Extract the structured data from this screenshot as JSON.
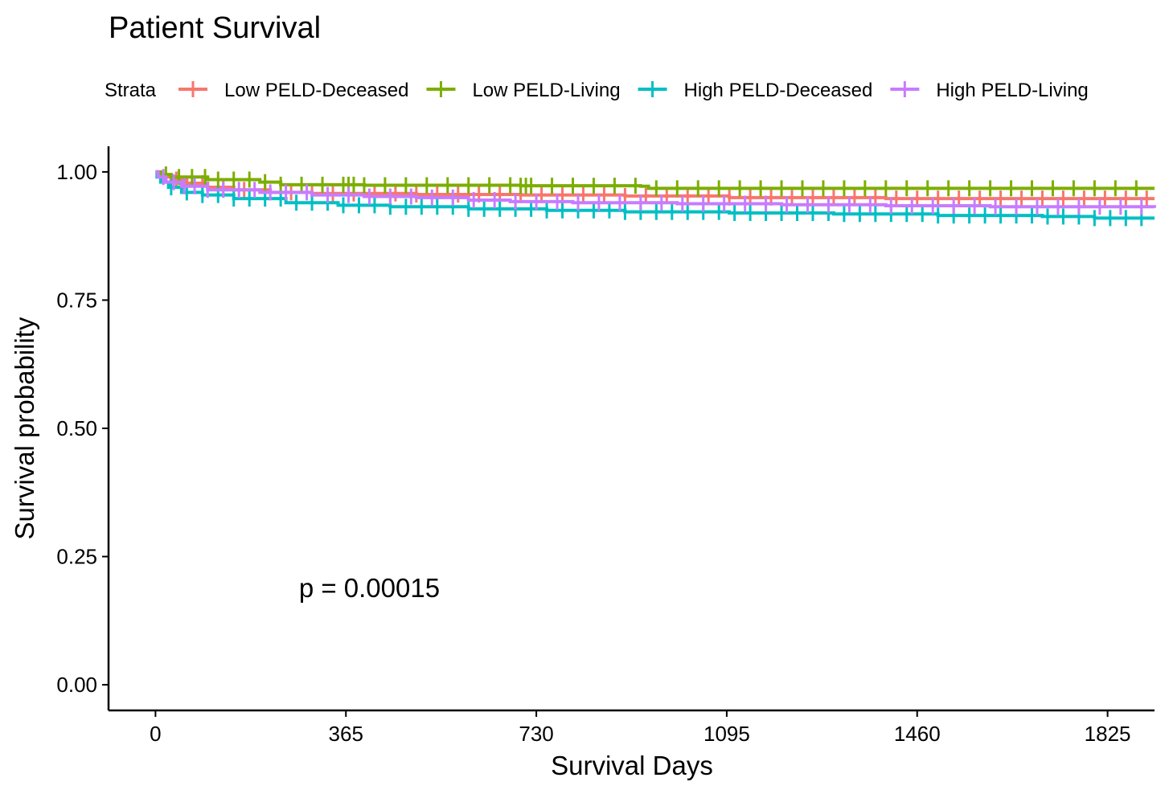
{
  "chart_data": {
    "type": "line",
    "subtype": "kaplan-meier",
    "title": "Patient Survival",
    "xlabel": "Survival Days",
    "ylabel": "Survival probability",
    "xlim": [
      -90,
      1915
    ],
    "ylim": [
      -0.05,
      1.05
    ],
    "xticks": [
      0,
      365,
      730,
      1095,
      1460,
      1825
    ],
    "yticks": [
      "0.00",
      "0.25",
      "0.50",
      "0.75",
      "1.00"
    ],
    "legend_title": "Strata",
    "legend_position": "top",
    "grid": false,
    "annotation": {
      "text": "p = 0.00015",
      "x": 410,
      "y": 0.19
    },
    "series": [
      {
        "name": "Low PELD-Deceased",
        "color": "#F8766D",
        "steps": [
          [
            0,
            1.0
          ],
          [
            5,
            0.995
          ],
          [
            15,
            0.99
          ],
          [
            30,
            0.985
          ],
          [
            60,
            0.978
          ],
          [
            100,
            0.97
          ],
          [
            150,
            0.965
          ],
          [
            220,
            0.96
          ],
          [
            300,
            0.958
          ],
          [
            500,
            0.956
          ],
          [
            700,
            0.955
          ],
          [
            900,
            0.953
          ],
          [
            1100,
            0.95
          ],
          [
            1400,
            0.948
          ],
          [
            1915,
            0.948
          ]
        ],
        "censor": [
          40,
          90,
          130,
          170,
          210,
          260,
          300,
          340,
          380,
          420,
          460,
          500,
          540,
          580,
          620,
          660,
          700,
          740,
          780,
          820,
          860,
          900,
          940,
          980,
          1020,
          1060,
          1100,
          1140,
          1180,
          1220,
          1260,
          1300,
          1340,
          1380,
          1420,
          1460,
          1500,
          1540,
          1580,
          1620,
          1660,
          1700,
          1740,
          1780,
          1820,
          1860,
          1900
        ]
      },
      {
        "name": "Low PELD-Living",
        "color": "#7CAE00",
        "steps": [
          [
            0,
            1.0
          ],
          [
            10,
            0.995
          ],
          [
            30,
            0.99
          ],
          [
            100,
            0.985
          ],
          [
            200,
            0.98
          ],
          [
            240,
            0.975
          ],
          [
            400,
            0.974
          ],
          [
            700,
            0.973
          ],
          [
            930,
            0.972
          ],
          [
            945,
            0.968
          ],
          [
            1200,
            0.968
          ],
          [
            1915,
            0.968
          ]
        ],
        "censor": [
          20,
          45,
          70,
          95,
          120,
          150,
          180,
          210,
          240,
          280,
          320,
          360,
          370,
          380,
          400,
          440,
          480,
          520,
          560,
          600,
          640,
          680,
          700,
          710,
          720,
          760,
          800,
          840,
          880,
          920,
          960,
          1000,
          1040,
          1080,
          1120,
          1160,
          1200,
          1240,
          1280,
          1320,
          1360,
          1400,
          1440,
          1480,
          1520,
          1560,
          1600,
          1640,
          1680,
          1720,
          1760,
          1800,
          1840,
          1880
        ]
      },
      {
        "name": "High PELD-Deceased",
        "color": "#00BFC4",
        "steps": [
          [
            0,
            1.0
          ],
          [
            3,
            0.99
          ],
          [
            10,
            0.98
          ],
          [
            25,
            0.97
          ],
          [
            50,
            0.96
          ],
          [
            90,
            0.955
          ],
          [
            150,
            0.948
          ],
          [
            250,
            0.94
          ],
          [
            350,
            0.935
          ],
          [
            450,
            0.932
          ],
          [
            600,
            0.928
          ],
          [
            750,
            0.925
          ],
          [
            900,
            0.922
          ],
          [
            1100,
            0.92
          ],
          [
            1300,
            0.918
          ],
          [
            1500,
            0.915
          ],
          [
            1700,
            0.913
          ],
          [
            1800,
            0.91
          ],
          [
            1915,
            0.91
          ]
        ],
        "censor": [
          30,
          60,
          90,
          120,
          150,
          180,
          210,
          240,
          270,
          300,
          330,
          360,
          390,
          420,
          450,
          480,
          510,
          540,
          570,
          600,
          630,
          660,
          690,
          720,
          750,
          780,
          810,
          840,
          870,
          900,
          930,
          960,
          990,
          1020,
          1050,
          1080,
          1110,
          1140,
          1170,
          1200,
          1230,
          1260,
          1290,
          1320,
          1350,
          1380,
          1410,
          1440,
          1470,
          1500,
          1530,
          1560,
          1590,
          1620,
          1650,
          1680,
          1710,
          1740,
          1770,
          1800,
          1830,
          1860,
          1890
        ]
      },
      {
        "name": "High PELD-Living",
        "color": "#C77CFF",
        "steps": [
          [
            0,
            1.0
          ],
          [
            5,
            0.99
          ],
          [
            20,
            0.98
          ],
          [
            50,
            0.972
          ],
          [
            100,
            0.965
          ],
          [
            200,
            0.96
          ],
          [
            300,
            0.955
          ],
          [
            400,
            0.952
          ],
          [
            500,
            0.95
          ],
          [
            600,
            0.945
          ],
          [
            680,
            0.942
          ],
          [
            800,
            0.94
          ],
          [
            1000,
            0.938
          ],
          [
            1200,
            0.936
          ],
          [
            1400,
            0.934
          ],
          [
            1600,
            0.932
          ],
          [
            1915,
            0.93
          ]
        ],
        "censor": [
          15,
          35,
          55,
          75,
          100,
          130,
          160,
          190,
          220,
          250,
          290,
          330,
          370,
          410,
          450,
          490,
          530,
          570,
          610,
          650,
          690,
          730,
          770,
          810,
          850,
          890,
          930,
          970,
          1010,
          1050,
          1090,
          1130,
          1170,
          1210,
          1250,
          1290,
          1330,
          1370,
          1410,
          1450,
          1490,
          1530,
          1570,
          1610,
          1650,
          1690,
          1730,
          1770,
          1810,
          1850,
          1890
        ]
      }
    ]
  }
}
